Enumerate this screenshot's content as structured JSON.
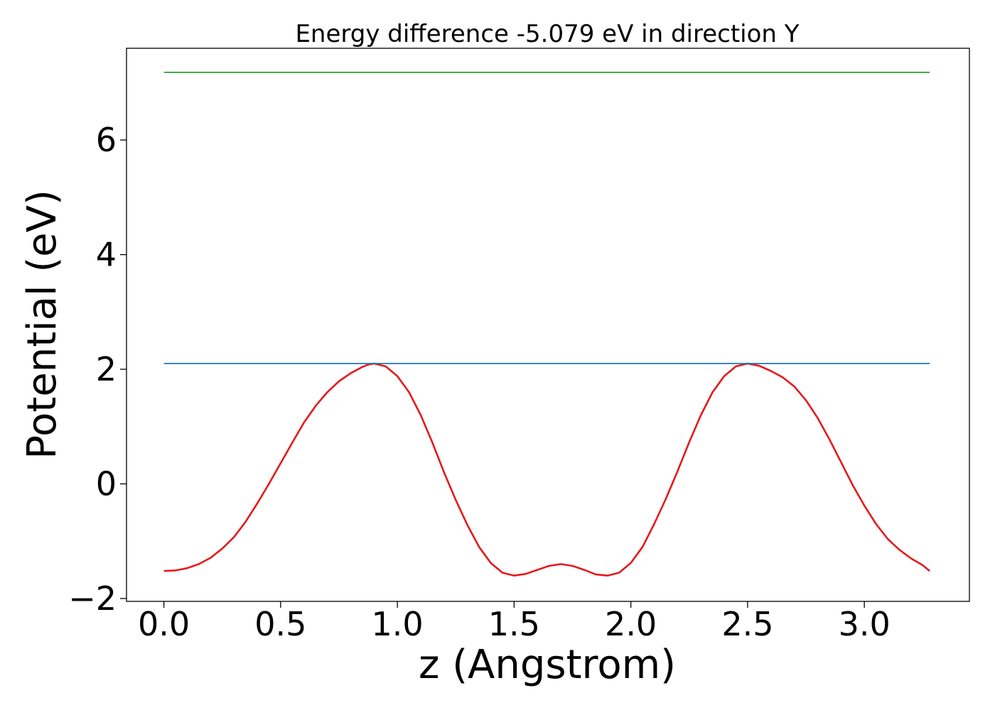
{
  "chart_data": {
    "type": "line",
    "title": "Energy difference -5.079 eV in direction Y",
    "xlabel": "z (Angstrom)",
    "ylabel": "Potential (eV)",
    "xlim": [
      -0.16,
      3.45
    ],
    "ylim": [
      -2.05,
      7.6
    ],
    "xticks": [
      0.0,
      0.5,
      1.0,
      1.5,
      2.0,
      2.5,
      3.0
    ],
    "xtick_labels": [
      "0.0",
      "0.5",
      "1.0",
      "1.5",
      "2.0",
      "2.5",
      "3.0"
    ],
    "yticks": [
      -2,
      0,
      2,
      4,
      6
    ],
    "ytick_labels": [
      "−2",
      "0",
      "2",
      "4",
      "6"
    ],
    "grid": false,
    "series": [
      {
        "color": "#e41a1c",
        "x": [
          0.0,
          0.05,
          0.1,
          0.15,
          0.2,
          0.25,
          0.3,
          0.35,
          0.4,
          0.45,
          0.5,
          0.55,
          0.6,
          0.65,
          0.7,
          0.75,
          0.8,
          0.85,
          0.875,
          0.9,
          0.95,
          1.0,
          1.05,
          1.1,
          1.15,
          1.2,
          1.25,
          1.3,
          1.35,
          1.4,
          1.45,
          1.5,
          1.55,
          1.6,
          1.65,
          1.7,
          1.75,
          1.8,
          1.85,
          1.9,
          1.95,
          2.0,
          2.05,
          2.1,
          2.15,
          2.2,
          2.25,
          2.3,
          2.35,
          2.4,
          2.45,
          2.5,
          2.55,
          2.6,
          2.65,
          2.7,
          2.75,
          2.8,
          2.85,
          2.9,
          2.95,
          3.0,
          3.05,
          3.1,
          3.15,
          3.2,
          3.25,
          3.28
        ],
        "y": [
          -1.52,
          -1.51,
          -1.47,
          -1.4,
          -1.29,
          -1.13,
          -0.93,
          -0.66,
          -0.34,
          0.0,
          0.36,
          0.72,
          1.07,
          1.36,
          1.6,
          1.79,
          1.93,
          2.04,
          2.08,
          2.1,
          2.05,
          1.88,
          1.6,
          1.2,
          0.72,
          0.2,
          -0.28,
          -0.72,
          -1.1,
          -1.38,
          -1.55,
          -1.6,
          -1.57,
          -1.5,
          -1.43,
          -1.4,
          -1.43,
          -1.5,
          -1.58,
          -1.6,
          -1.55,
          -1.38,
          -1.1,
          -0.7,
          -0.26,
          0.22,
          0.73,
          1.2,
          1.6,
          1.88,
          2.05,
          2.1,
          2.06,
          1.97,
          1.86,
          1.7,
          1.46,
          1.15,
          0.78,
          0.38,
          -0.02,
          -0.38,
          -0.7,
          -0.96,
          -1.15,
          -1.3,
          -1.42,
          -1.52
        ]
      },
      {
        "color": "#1f77b4",
        "x": [
          0.0,
          3.28
        ],
        "y": [
          2.1,
          2.1
        ]
      },
      {
        "color": "#2ca02c",
        "x": [
          0.0,
          3.28
        ],
        "y": [
          7.18,
          7.18
        ]
      }
    ]
  }
}
